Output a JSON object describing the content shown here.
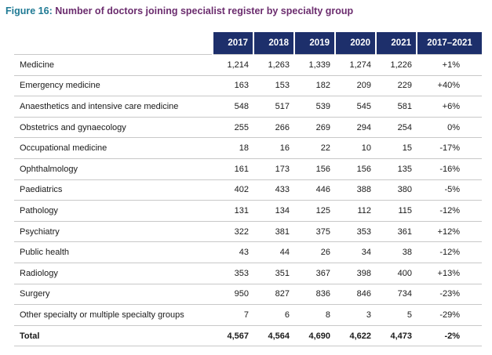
{
  "figure": {
    "number": "Figure 16:",
    "title": "Number of doctors joining specialist register by specialty group"
  },
  "table": {
    "columns": [
      "2017",
      "2018",
      "2019",
      "2020",
      "2021",
      "2017–2021"
    ],
    "rows": [
      {
        "name": "Medicine",
        "values": [
          "1,214",
          "1,263",
          "1,339",
          "1,274",
          "1,226"
        ],
        "change": "+1%"
      },
      {
        "name": "Emergency medicine",
        "values": [
          "163",
          "153",
          "182",
          "209",
          "229"
        ],
        "change": "+40%"
      },
      {
        "name": "Anaesthetics and intensive care medicine",
        "values": [
          "548",
          "517",
          "539",
          "545",
          "581"
        ],
        "change": "+6%"
      },
      {
        "name": "Obstetrics and gynaecology",
        "values": [
          "255",
          "266",
          "269",
          "294",
          "254"
        ],
        "change": "0%"
      },
      {
        "name": "Occupational medicine",
        "values": [
          "18",
          "16",
          "22",
          "10",
          "15"
        ],
        "change": "-17%"
      },
      {
        "name": "Ophthalmology",
        "values": [
          "161",
          "173",
          "156",
          "156",
          "135"
        ],
        "change": "-16%"
      },
      {
        "name": "Paediatrics",
        "values": [
          "402",
          "433",
          "446",
          "388",
          "380"
        ],
        "change": "-5%"
      },
      {
        "name": "Pathology",
        "values": [
          "131",
          "134",
          "125",
          "112",
          "115"
        ],
        "change": "-12%"
      },
      {
        "name": "Psychiatry",
        "values": [
          "322",
          "381",
          "375",
          "353",
          "361"
        ],
        "change": "+12%"
      },
      {
        "name": "Public health",
        "values": [
          "43",
          "44",
          "26",
          "34",
          "38"
        ],
        "change": "-12%"
      },
      {
        "name": "Radiology",
        "values": [
          "353",
          "351",
          "367",
          "398",
          "400"
        ],
        "change": "+13%"
      },
      {
        "name": "Surgery",
        "values": [
          "950",
          "827",
          "836",
          "846",
          "734"
        ],
        "change": "-23%"
      },
      {
        "name": "Other specialty or multiple specialty groups",
        "values": [
          "7",
          "6",
          "8",
          "3",
          "5"
        ],
        "change": "-29%"
      }
    ],
    "total": {
      "name": "Total",
      "values": [
        "4,567",
        "4,564",
        "4,690",
        "4,622",
        "4,473"
      ],
      "change": "-2%"
    }
  },
  "colors": {
    "header_bg": "#1d2f6b",
    "figure_number": "#1f7a94",
    "figure_title": "#6b2c6e"
  }
}
